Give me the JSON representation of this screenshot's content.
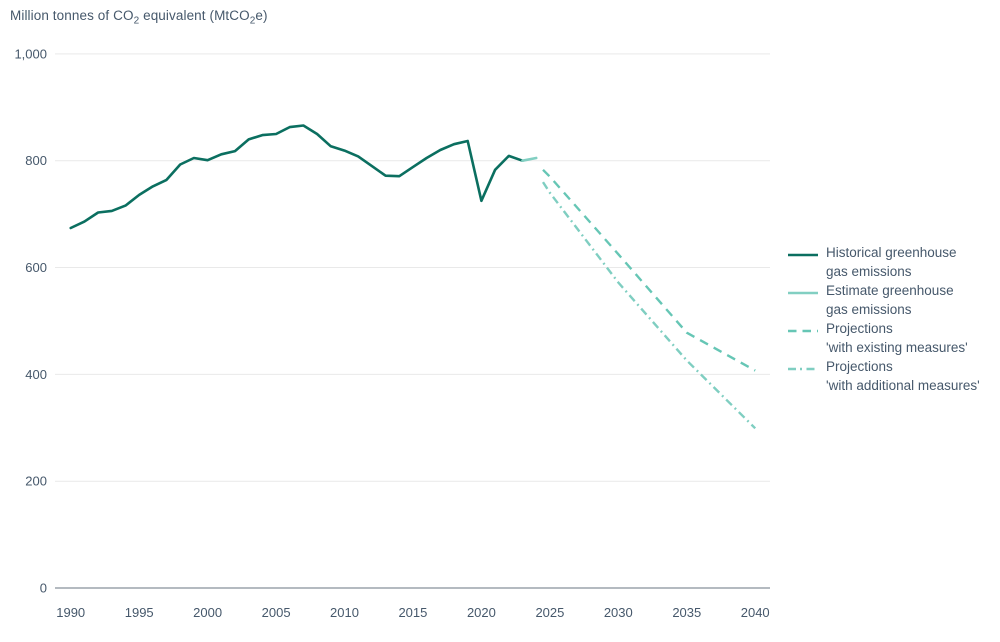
{
  "title": {
    "p1": "Million tonnes of CO",
    "s1": "2",
    "p2": " equivalent (MtCO",
    "s2": "2",
    "p3": "e)"
  },
  "colors": {
    "text": "#46586b",
    "grid": "#e9e9e9",
    "axis": "#b4bac0",
    "historical": "#0b6f60",
    "estimate": "#82cfc2",
    "projection_existing": "#66c6b5",
    "projection_additional": "#7fcec1"
  },
  "chart_data": {
    "type": "line",
    "title": "Million tonnes of CO2 equivalent (MtCO2e)",
    "xlabel": "",
    "ylabel": "Million tonnes of CO2 equivalent (MtCO2e)",
    "ylim": [
      0,
      1000
    ],
    "xlim": [
      1988.9,
      2041.5
    ],
    "yticks": [
      0,
      200,
      400,
      600,
      800,
      1000
    ],
    "ytick_labels": [
      "0",
      "200",
      "400",
      "600",
      "800",
      "1,000"
    ],
    "xticks": [
      1990,
      1995,
      2000,
      2005,
      2010,
      2015,
      2020,
      2025,
      2030,
      2035,
      2040
    ],
    "grid": "horizontal",
    "legend_position": "right-middle",
    "series": [
      {
        "name": "Historical greenhouse gas emissions",
        "style": "solid",
        "color": "#0b6f60",
        "width": 2.6,
        "x": [
          1990,
          1991,
          1992,
          1993,
          1994,
          1995,
          1996,
          1997,
          1998,
          1999,
          2000,
          2001,
          2002,
          2003,
          2004,
          2005,
          2006,
          2007,
          2008,
          2009,
          2010,
          2011,
          2012,
          2013,
          2014,
          2015,
          2016,
          2017,
          2018,
          2019,
          2020,
          2021,
          2022,
          2023
        ],
        "y": [
          674,
          686,
          703,
          706,
          716,
          736,
          752,
          764,
          793,
          805,
          801,
          812,
          818,
          840,
          848,
          850,
          863,
          866,
          850,
          827,
          819,
          808,
          790,
          772,
          771,
          788,
          805,
          820,
          831,
          837,
          725,
          783,
          809,
          800
        ]
      },
      {
        "name": "Estimate greenhouse gas emissions",
        "style": "solid",
        "color": "#82cfc2",
        "width": 2.6,
        "x": [
          2023,
          2024
        ],
        "y": [
          800,
          805
        ]
      },
      {
        "name": "Projections 'with existing measures'",
        "style": "dashed",
        "color": "#66c6b5",
        "width": 2.4,
        "x": [
          2024.5,
          2025,
          2030,
          2035,
          2040
        ],
        "y": [
          783,
          770,
          625,
          478,
          407
        ]
      },
      {
        "name": "Projections 'with additional measures'",
        "style": "dashdot",
        "color": "#7fcec1",
        "width": 2.4,
        "x": [
          2024.5,
          2025,
          2030,
          2035,
          2040
        ],
        "y": [
          760,
          740,
          572,
          426,
          299
        ]
      }
    ]
  },
  "legend": {
    "items": [
      {
        "line1": "Historical greenhouse",
        "line2": "gas emissions",
        "series_index": 0
      },
      {
        "line1": "Estimate greenhouse",
        "line2": "gas emissions",
        "series_index": 1
      },
      {
        "line1": "Projections",
        "line2": "'with existing measures'",
        "series_index": 2
      },
      {
        "line1": "Projections",
        "line2": "'with additional measures'",
        "series_index": 3
      }
    ]
  }
}
